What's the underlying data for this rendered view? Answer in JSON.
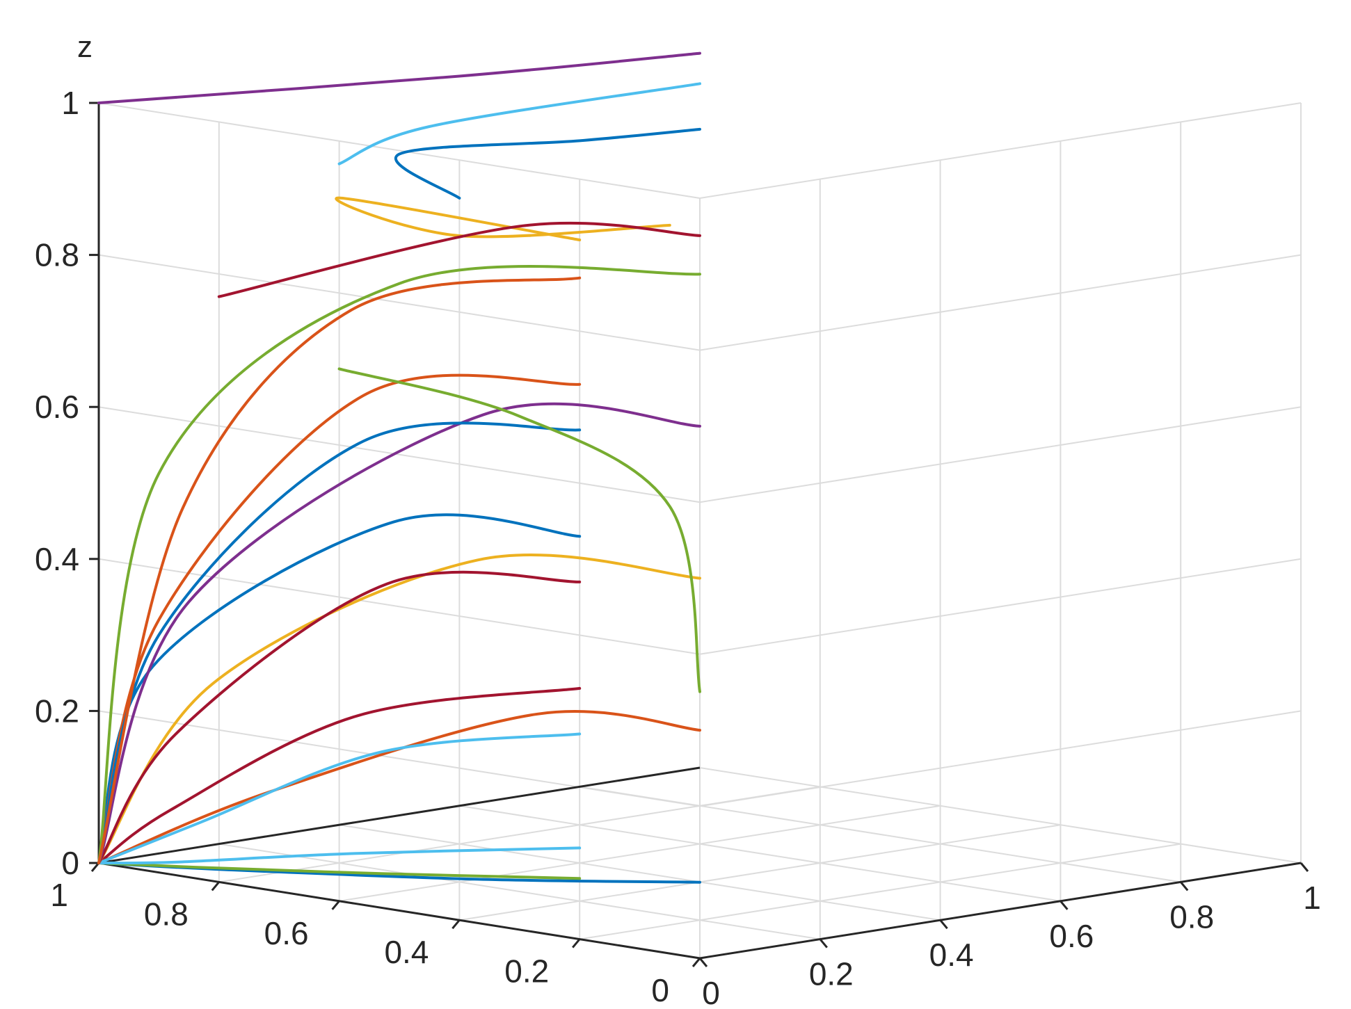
{
  "chart_data": {
    "type": "line",
    "title": "",
    "xlabel": "",
    "ylabel": "",
    "zlabel": "z",
    "xlim": [
      0,
      1
    ],
    "ylim": [
      0,
      1
    ],
    "zlim": [
      0,
      1
    ],
    "grid": true,
    "x_ticks": [
      "0",
      "0.2",
      "0.4",
      "0.6",
      "0.8",
      "1"
    ],
    "y_ticks": [
      "0",
      "0.2",
      "0.4",
      "0.6",
      "0.8",
      "1"
    ],
    "z_ticks": [
      "0",
      "0.2",
      "0.4",
      "0.6",
      "0.8",
      "1"
    ],
    "colors": [
      "#0072BD",
      "#D95319",
      "#EDB120",
      "#7E2F8E",
      "#77AC30",
      "#4DBEEE",
      "#A2142F"
    ],
    "converges_to": [
      1,
      0,
      0
    ],
    "series": [
      {
        "color_index": 0,
        "points": [
          [
            0,
            0,
            0.1
          ],
          [
            0.4,
            0.03,
            0.05
          ],
          [
            0.8,
            0.01,
            0.015
          ],
          [
            1,
            0,
            0
          ]
        ]
      },
      {
        "color_index": 4,
        "points": [
          [
            0.2,
            0,
            0.08
          ],
          [
            0.55,
            0.02,
            0.04
          ],
          [
            0.85,
            0.01,
            0.012
          ],
          [
            1,
            0,
            0
          ]
        ]
      },
      {
        "color_index": 5,
        "points": [
          [
            0.2,
            0,
            0.12
          ],
          [
            0.6,
            0.02,
            0.06
          ],
          [
            0.88,
            0.01,
            0.015
          ],
          [
            1,
            0,
            0
          ]
        ]
      },
      {
        "color_index": 1,
        "points": [
          [
            0,
            0,
            0.3
          ],
          [
            0.3,
            0.03,
            0.28
          ],
          [
            0.75,
            0.03,
            0.12
          ],
          [
            1,
            0,
            0
          ]
        ]
      },
      {
        "color_index": 6,
        "points": [
          [
            0.2,
            0,
            0.33
          ],
          [
            0.6,
            0.03,
            0.24
          ],
          [
            0.9,
            0.02,
            0.08
          ],
          [
            1,
            0,
            0
          ]
        ]
      },
      {
        "color_index": 5,
        "points": [
          [
            0.2,
            0,
            0.27
          ],
          [
            0.55,
            0.02,
            0.2
          ],
          [
            0.85,
            0.02,
            0.07
          ],
          [
            1,
            0,
            0
          ]
        ]
      },
      {
        "color_index": 2,
        "points": [
          [
            0,
            0,
            0.5
          ],
          [
            0.4,
            0.03,
            0.47
          ],
          [
            0.85,
            0.04,
            0.25
          ],
          [
            1,
            0,
            0
          ]
        ]
      },
      {
        "color_index": 6,
        "points": [
          [
            0.2,
            0,
            0.47
          ],
          [
            0.55,
            0.03,
            0.42
          ],
          [
            0.9,
            0.03,
            0.18
          ],
          [
            1,
            0,
            0
          ]
        ]
      },
      {
        "color_index": 0,
        "points": [
          [
            0.2,
            0,
            0.53
          ],
          [
            0.55,
            0.04,
            0.5
          ],
          [
            0.95,
            0.04,
            0.26
          ],
          [
            1,
            0,
            0
          ]
        ]
      },
      {
        "color_index": 3,
        "points": [
          [
            0,
            0,
            0.7
          ],
          [
            0.4,
            0.04,
            0.66
          ],
          [
            0.9,
            0.05,
            0.35
          ],
          [
            1,
            0,
            0
          ]
        ]
      },
      {
        "color_index": 1,
        "points": [
          [
            0.2,
            0,
            0.73
          ],
          [
            0.6,
            0.04,
            0.66
          ],
          [
            0.95,
            0.05,
            0.32
          ],
          [
            1,
            0,
            0
          ]
        ]
      },
      {
        "color_index": 0,
        "points": [
          [
            0.2,
            0,
            0.67
          ],
          [
            0.6,
            0.04,
            0.6
          ],
          [
            0.95,
            0.05,
            0.3
          ],
          [
            1,
            0,
            0
          ]
        ]
      },
      {
        "color_index": 4,
        "points": [
          [
            0,
            0,
            0.9
          ],
          [
            0.6,
            0.1,
            0.8
          ],
          [
            1,
            0.1,
            0.5
          ],
          [
            1,
            0,
            0
          ]
        ]
      },
      {
        "color_index": 1,
        "points": [
          [
            0.2,
            0,
            0.87
          ],
          [
            0.7,
            0.12,
            0.75
          ],
          [
            1,
            0.14,
            0.45
          ],
          [
            1,
            0,
            0
          ]
        ]
      },
      {
        "color_index": 2,
        "points": [
          [
            0.2,
            0,
            0.92
          ],
          [
            0.9,
            0.3,
            0.85
          ],
          [
            1,
            0.6,
            0.75
          ],
          [
            1,
            0.95,
            0.72
          ]
        ]
      },
      {
        "color_index": 0,
        "points": [
          [
            0.4,
            0,
            0.95
          ],
          [
            1,
            0.5,
            0.87
          ],
          [
            1,
            0.8,
            0.85
          ],
          [
            1,
            1,
            0.84
          ]
        ]
      },
      {
        "color_index": 5,
        "points": [
          [
            0.6,
            0,
            0.97
          ],
          [
            1,
            0.55,
            0.9
          ],
          [
            1,
            1,
            0.9
          ]
        ]
      },
      {
        "color_index": 3,
        "points": [
          [
            1,
            0,
            1
          ],
          [
            1,
            0.6,
            0.96
          ],
          [
            1,
            1,
            0.94
          ]
        ]
      },
      {
        "color_index": 6,
        "points": [
          [
            1,
            0.2,
            0.72
          ],
          [
            1,
            0.7,
            0.75
          ],
          [
            1,
            1,
            0.7
          ]
        ]
      },
      {
        "color_index": 4,
        "points": [
          [
            1,
            0.4,
            0.6
          ],
          [
            1,
            0.7,
            0.5
          ],
          [
            1,
            0.95,
            0.35
          ],
          [
            1,
            1,
            0.1
          ]
        ]
      }
    ]
  }
}
